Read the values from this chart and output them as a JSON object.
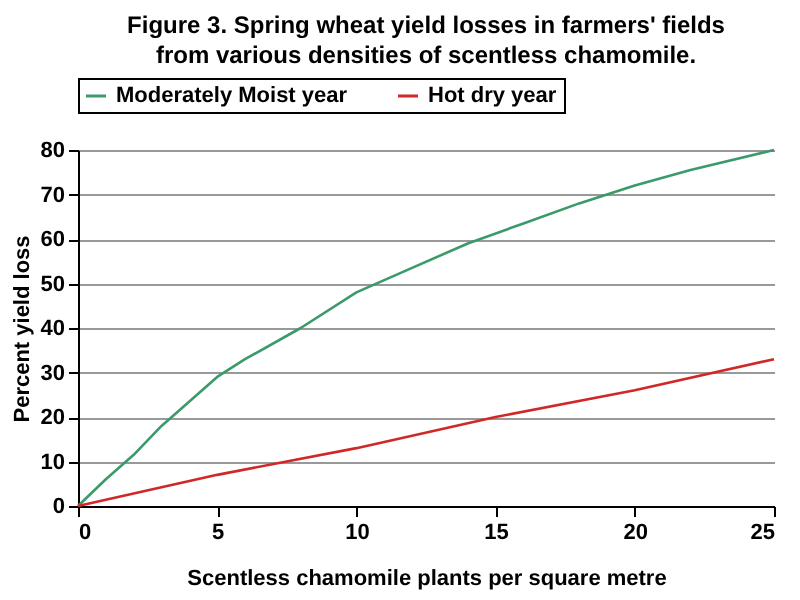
{
  "chart_data": {
    "type": "line",
    "title": [
      "Figure 3. Spring wheat yield losses in farmers' fields",
      "from various densities of scentless chamomile."
    ],
    "xlabel": "Scentless chamomile plants per square metre",
    "ylabel": "Percent yield loss",
    "xlim": [
      0,
      25
    ],
    "xticks": [
      0,
      5,
      10,
      15,
      20,
      25
    ],
    "ylim": [
      0,
      80
    ],
    "yticks": [
      0,
      10,
      20,
      30,
      40,
      50,
      60,
      70,
      80
    ],
    "grid": "y",
    "legend": "top",
    "marker": "none",
    "line_style": "solid",
    "series": [
      {
        "name": "Moderately Moist year",
        "color": "#3a9a6a",
        "x": [
          0,
          1,
          2,
          3,
          4,
          5,
          6,
          8,
          10,
          12,
          14,
          16,
          18,
          20,
          22,
          25
        ],
        "values": [
          0,
          6,
          11.5,
          18,
          23.5,
          29,
          33,
          40,
          48,
          53.5,
          59,
          63.5,
          68,
          72,
          75.5,
          80
        ]
      },
      {
        "name": "Hot dry year",
        "color": "#d02828",
        "x": [
          0,
          5,
          10,
          15,
          20,
          25
        ],
        "values": [
          0,
          7,
          13,
          20,
          26,
          33
        ]
      }
    ]
  }
}
